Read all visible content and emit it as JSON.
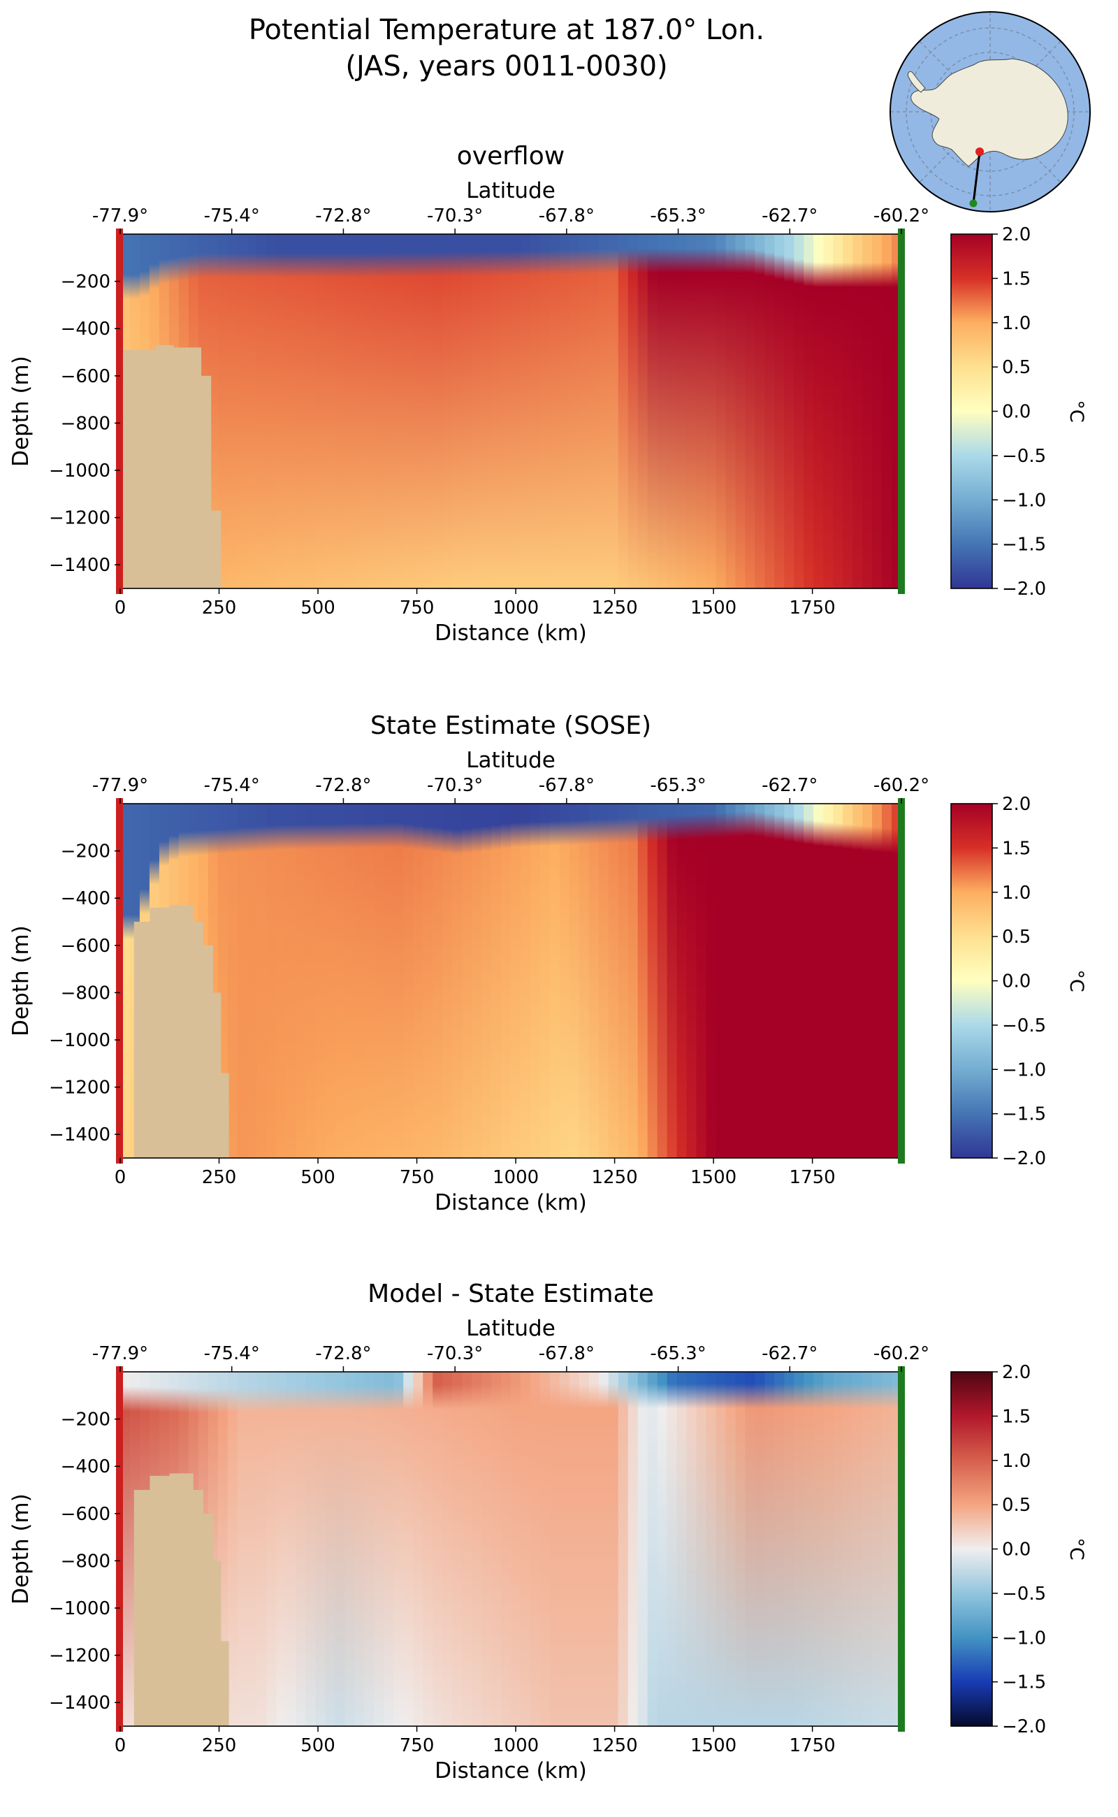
{
  "figure": {
    "title_line1": "Potential Temperature at 187.0° Lon.",
    "title_line2": "(JAS, years 0011-0030)"
  },
  "colors": {
    "land": "#d8bf98",
    "south_marker": "#cc1f1f",
    "north_marker": "#1e7a1e",
    "ocean_map": "#93b8e6",
    "continent_map": "#efecdc"
  },
  "chart_data": [
    {
      "type": "heatmap",
      "title": "overflow",
      "xlabel": "Distance (km)",
      "ylabel": "Depth (m)",
      "top_axis_label": "Latitude",
      "top_tick_labels": [
        "-77.9°",
        "-75.4°",
        "-72.8°",
        "-70.3°",
        "-67.8°",
        "-65.3°",
        "-62.7°",
        "-60.2°"
      ],
      "x_ticks": [
        0,
        250,
        500,
        750,
        1000,
        1250,
        1500,
        1750
      ],
      "y_ticks": [
        -200,
        -400,
        -600,
        -800,
        -1000,
        -1200,
        -1400
      ],
      "xlim": [
        0,
        1975
      ],
      "ylim": [
        -1500,
        0
      ],
      "colorbar": {
        "label": "°C",
        "range": [
          -2.0,
          2.0
        ],
        "ticks": [
          "2.0",
          "1.5",
          "1.0",
          "0.5",
          "0.0",
          "−0.5",
          "−1.0",
          "−1.5",
          "−2.0"
        ],
        "colormap": "RdYlBu_r"
      },
      "bathymetry_km_depth": [
        [
          0,
          -490
        ],
        [
          90,
          -490
        ],
        [
          90,
          -470
        ],
        [
          135,
          -470
        ],
        [
          135,
          -480
        ],
        [
          205,
          -480
        ],
        [
          205,
          -600
        ],
        [
          230,
          -600
        ],
        [
          230,
          -1170
        ],
        [
          255,
          -1170
        ],
        [
          255,
          -1500
        ]
      ],
      "layers": {
        "surface_layer_depth": [
          [
            0,
            -200
          ],
          [
            50,
            -200
          ],
          [
            100,
            -140
          ],
          [
            200,
            -110
          ],
          [
            600,
            -110
          ],
          [
            1000,
            -100
          ],
          [
            1300,
            -90
          ],
          [
            1600,
            -90
          ],
          [
            1750,
            -150
          ],
          [
            1975,
            -150
          ]
        ],
        "surface_values": [
          [
            0,
            -1.5
          ],
          [
            400,
            -1.8
          ],
          [
            1000,
            -1.8
          ],
          [
            1500,
            -1.4
          ],
          [
            1700,
            -0.5
          ],
          [
            1850,
            0.6
          ],
          [
            1975,
            1.2
          ]
        ],
        "interior_values_top": [
          [
            0,
            0.8
          ],
          [
            200,
            1.3
          ],
          [
            800,
            1.4
          ],
          [
            1250,
            1.3
          ],
          [
            1350,
            2.0
          ],
          [
            1975,
            2.0
          ]
        ],
        "interior_values_bottom": [
          [
            0,
            0.6
          ],
          [
            250,
            0.9
          ],
          [
            900,
            0.7
          ],
          [
            1250,
            0.7
          ],
          [
            1500,
            1.0
          ],
          [
            1800,
            1.6
          ],
          [
            1975,
            2.0
          ]
        ]
      }
    },
    {
      "type": "heatmap",
      "title": "State Estimate (SOSE)",
      "xlabel": "Distance (km)",
      "ylabel": "Depth (m)",
      "top_axis_label": "Latitude",
      "top_tick_labels": [
        "-77.9°",
        "-75.4°",
        "-72.8°",
        "-70.3°",
        "-67.8°",
        "-65.3°",
        "-62.7°",
        "-60.2°"
      ],
      "x_ticks": [
        0,
        250,
        500,
        750,
        1000,
        1250,
        1500,
        1750
      ],
      "y_ticks": [
        -200,
        -400,
        -600,
        -800,
        -1000,
        -1200,
        -1400
      ],
      "xlim": [
        0,
        1975
      ],
      "ylim": [
        -1500,
        0
      ],
      "colorbar": {
        "label": "°C",
        "range": [
          -2.0,
          2.0
        ],
        "ticks": [
          "2.0",
          "1.5",
          "1.0",
          "0.5",
          "0.0",
          "−0.5",
          "−1.0",
          "−1.5",
          "−2.0"
        ],
        "colormap": "RdYlBu_r"
      },
      "bathymetry_km_depth": [
        [
          0,
          -1500
        ],
        [
          35,
          -1500
        ],
        [
          35,
          -500
        ],
        [
          75,
          -500
        ],
        [
          75,
          -440
        ],
        [
          125,
          -440
        ],
        [
          125,
          -430
        ],
        [
          185,
          -430
        ],
        [
          185,
          -500
        ],
        [
          210,
          -500
        ],
        [
          210,
          -600
        ],
        [
          235,
          -600
        ],
        [
          235,
          -800
        ],
        [
          255,
          -800
        ],
        [
          255,
          -1140
        ],
        [
          275,
          -1140
        ],
        [
          275,
          -1500
        ]
      ],
      "layers": {
        "surface_layer_depth": [
          [
            0,
            -500
          ],
          [
            40,
            -500
          ],
          [
            100,
            -200
          ],
          [
            150,
            -150
          ],
          [
            400,
            -120
          ],
          [
            700,
            -110
          ],
          [
            850,
            -140
          ],
          [
            1000,
            -110
          ],
          [
            1300,
            -90
          ],
          [
            1600,
            -60
          ],
          [
            1750,
            -100
          ],
          [
            1975,
            -140
          ]
        ],
        "surface_values": [
          [
            0,
            -1.6
          ],
          [
            400,
            -1.8
          ],
          [
            1000,
            -1.9
          ],
          [
            1500,
            -1.6
          ],
          [
            1700,
            -0.6
          ],
          [
            1850,
            0.7
          ],
          [
            1975,
            1.5
          ]
        ],
        "interior_values_top": [
          [
            0,
            0.5
          ],
          [
            250,
            1.1
          ],
          [
            700,
            1.2
          ],
          [
            1100,
            1.0
          ],
          [
            1300,
            1.2
          ],
          [
            1400,
            2.0
          ],
          [
            1975,
            2.0
          ]
        ],
        "interior_values_bottom": [
          [
            0,
            0.6
          ],
          [
            300,
            1.1
          ],
          [
            800,
            0.9
          ],
          [
            1150,
            0.6
          ],
          [
            1300,
            0.9
          ],
          [
            1500,
            2.0
          ],
          [
            1975,
            2.0
          ]
        ]
      }
    },
    {
      "type": "heatmap",
      "title": "Model - State Estimate",
      "xlabel": "Distance (km)",
      "ylabel": "Depth (m)",
      "top_axis_label": "Latitude",
      "top_tick_labels": [
        "-77.9°",
        "-75.4°",
        "-72.8°",
        "-70.3°",
        "-67.8°",
        "-65.3°",
        "-62.7°",
        "-60.2°"
      ],
      "x_ticks": [
        0,
        250,
        500,
        750,
        1000,
        1250,
        1500,
        1750
      ],
      "y_ticks": [
        -200,
        -400,
        -600,
        -800,
        -1000,
        -1200,
        -1400
      ],
      "xlim": [
        0,
        1975
      ],
      "ylim": [
        -1500,
        0
      ],
      "colorbar": {
        "label": "°C",
        "range": [
          -2.0,
          2.0
        ],
        "ticks": [
          "2.0",
          "1.5",
          "1.0",
          "0.5",
          "0.0",
          "−0.5",
          "−1.0",
          "−1.5",
          "−2.0"
        ],
        "colormap": "RdBu_r"
      },
      "bathymetry_km_depth": [
        [
          0,
          -1500
        ],
        [
          35,
          -1500
        ],
        [
          35,
          -500
        ],
        [
          75,
          -500
        ],
        [
          75,
          -440
        ],
        [
          125,
          -440
        ],
        [
          125,
          -430
        ],
        [
          185,
          -430
        ],
        [
          185,
          -500
        ],
        [
          210,
          -500
        ],
        [
          210,
          -600
        ],
        [
          235,
          -600
        ],
        [
          235,
          -800
        ],
        [
          255,
          -800
        ],
        [
          255,
          -1140
        ],
        [
          275,
          -1140
        ],
        [
          275,
          -1500
        ]
      ],
      "layers": {
        "surface_layer_depth": [
          [
            0,
            -90
          ],
          [
            200,
            -100
          ],
          [
            600,
            -90
          ],
          [
            1000,
            -80
          ],
          [
            1975,
            -80
          ]
        ],
        "surface_values": [
          [
            0,
            0.0
          ],
          [
            300,
            -0.3
          ],
          [
            700,
            -0.6
          ],
          [
            800,
            1.0
          ],
          [
            1000,
            0.6
          ],
          [
            1200,
            0.1
          ],
          [
            1400,
            -1.2
          ],
          [
            1600,
            -1.4
          ],
          [
            1800,
            -0.8
          ],
          [
            1975,
            -0.6
          ]
        ],
        "interior_values_top": [
          [
            0,
            1.1
          ],
          [
            150,
            0.9
          ],
          [
            300,
            0.4
          ],
          [
            600,
            0.4
          ],
          [
            1000,
            0.5
          ],
          [
            1250,
            0.5
          ],
          [
            1330,
            -0.1
          ],
          [
            1600,
            0.6
          ],
          [
            1975,
            0.4
          ]
        ],
        "interior_values_bottom": [
          [
            0,
            0.1
          ],
          [
            350,
            0.1
          ],
          [
            550,
            -0.2
          ],
          [
            800,
            0.1
          ],
          [
            1100,
            0.3
          ],
          [
            1250,
            0.3
          ],
          [
            1350,
            -0.3
          ],
          [
            1700,
            -0.3
          ],
          [
            1975,
            -0.2
          ]
        ]
      }
    }
  ]
}
